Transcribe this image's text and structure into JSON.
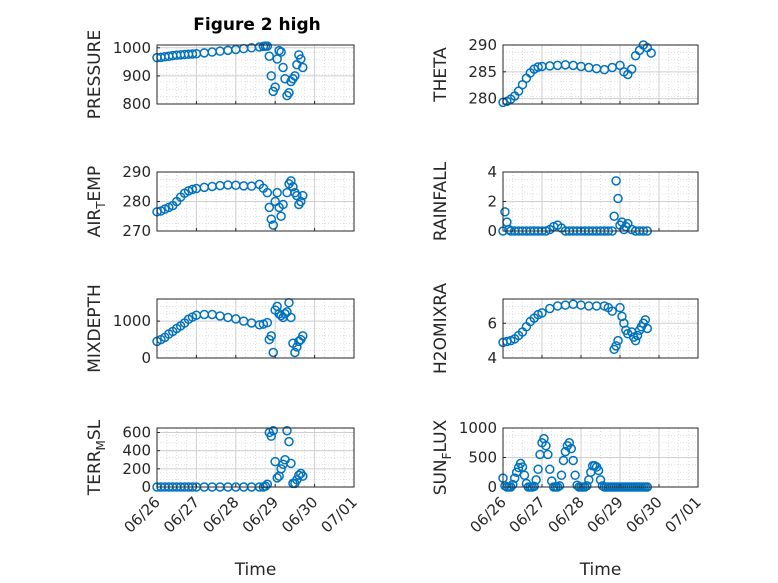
{
  "figure": {
    "title": "Figure 2 high"
  },
  "chart_data": [
    {
      "type": "scatter",
      "ylabel": "PRESSURE",
      "xlabel": "",
      "ylim": [
        800,
        1010
      ],
      "yticks": [
        "800",
        "900",
        "1000"
      ],
      "title": "Figure 2 high",
      "series": [
        {
          "color": "#0072BD",
          "marker": "circle",
          "x": [
            0,
            0.1,
            0.2,
            0.3,
            0.4,
            0.5,
            0.6,
            0.7,
            0.8,
            0.9,
            1.0,
            1.2,
            1.4,
            1.6,
            1.8,
            2.0,
            2.2,
            2.4,
            2.6,
            2.7,
            2.75,
            2.8,
            2.85,
            2.9,
            2.95,
            3.0,
            3.05,
            3.1,
            3.15,
            3.2,
            3.25,
            3.3,
            3.35,
            3.4,
            3.45,
            3.5,
            3.55,
            3.6,
            3.65,
            3.7
          ],
          "y": [
            965,
            966,
            968,
            970,
            972,
            974,
            975,
            976,
            977,
            978,
            979,
            982,
            985,
            988,
            991,
            994,
            997,
            1000,
            1003,
            1005,
            1006,
            1006,
            970,
            900,
            845,
            860,
            960,
            990,
            985,
            930,
            890,
            830,
            840,
            880,
            890,
            900,
            940,
            975,
            960,
            930
          ]
        }
      ]
    },
    {
      "type": "scatter",
      "ylabel": "THETA",
      "xlabel": "",
      "ylim": [
        279,
        290
      ],
      "yticks": [
        "280",
        "285",
        "290"
      ],
      "series": [
        {
          "color": "#0072BD",
          "marker": "circle",
          "x": [
            0,
            0.1,
            0.2,
            0.3,
            0.4,
            0.5,
            0.6,
            0.7,
            0.8,
            0.9,
            1.0,
            1.2,
            1.4,
            1.6,
            1.8,
            2.0,
            2.2,
            2.4,
            2.6,
            2.8,
            3.0,
            3.1,
            3.2,
            3.3,
            3.4,
            3.5,
            3.6,
            3.7,
            3.8
          ],
          "y": [
            279.3,
            279.5,
            279.9,
            280.5,
            281.4,
            282.6,
            283.8,
            284.8,
            285.5,
            285.9,
            286.0,
            286.1,
            286.2,
            286.3,
            286.2,
            286.0,
            285.8,
            285.6,
            285.4,
            285.8,
            286.2,
            285,
            284.5,
            285.5,
            288,
            289,
            290,
            289.5,
            288.5
          ]
        }
      ]
    },
    {
      "type": "scatter",
      "ylabel": "AIR_TEMP",
      "xlabel": "",
      "ylim": [
        270,
        290
      ],
      "yticks": [
        "270",
        "280",
        "290"
      ],
      "series": [
        {
          "color": "#0072BD",
          "marker": "circle",
          "x": [
            0,
            0.1,
            0.2,
            0.3,
            0.4,
            0.5,
            0.6,
            0.7,
            0.8,
            0.9,
            1.0,
            1.2,
            1.4,
            1.6,
            1.8,
            2.0,
            2.2,
            2.4,
            2.6,
            2.7,
            2.8,
            2.85,
            2.9,
            2.95,
            3.0,
            3.05,
            3.1,
            3.15,
            3.2,
            3.3,
            3.35,
            3.4,
            3.45,
            3.5,
            3.55,
            3.6,
            3.65,
            3.7
          ],
          "y": [
            276.5,
            276.8,
            277.4,
            278.0,
            278.6,
            280.0,
            281.5,
            282.8,
            283.6,
            284.1,
            284.4,
            284.8,
            285.1,
            285.4,
            285.6,
            285.5,
            285.3,
            285.2,
            285.8,
            284.5,
            283,
            278,
            274,
            272,
            280,
            283,
            278,
            275,
            279,
            283,
            286,
            287,
            285,
            283,
            282,
            279,
            280,
            282
          ]
        }
      ]
    },
    {
      "type": "scatter",
      "ylabel": "RAINFALL",
      "xlabel": "",
      "ylim": [
        0,
        4
      ],
      "yticks": [
        "0",
        "2",
        "4"
      ],
      "series": [
        {
          "color": "#0072BD",
          "marker": "circle",
          "x": [
            0,
            0.05,
            0.1,
            0.15,
            0.2,
            0.3,
            0.4,
            0.5,
            0.6,
            0.7,
            0.8,
            0.9,
            1.0,
            1.1,
            1.2,
            1.3,
            1.4,
            1.5,
            1.6,
            1.7,
            1.8,
            1.9,
            2.0,
            2.1,
            2.2,
            2.3,
            2.4,
            2.5,
            2.6,
            2.7,
            2.8,
            2.85,
            2.9,
            2.95,
            3.0,
            3.05,
            3.1,
            3.15,
            3.2,
            3.3,
            3.4,
            3.5,
            3.6,
            3.7
          ],
          "y": [
            0,
            1.3,
            0.6,
            0.1,
            0,
            0,
            0,
            0,
            0,
            0,
            0,
            0,
            0,
            0,
            0.1,
            0.3,
            0.4,
            0.2,
            0,
            0,
            0,
            0,
            0,
            0,
            0,
            0,
            0,
            0,
            0,
            0,
            0,
            1.0,
            3.4,
            2.2,
            0.4,
            0.6,
            0.1,
            0.3,
            0.5,
            0.1,
            0,
            0,
            0,
            0
          ]
        }
      ]
    },
    {
      "type": "scatter",
      "ylabel": "MIXDEPTH",
      "xlabel": "",
      "ylim": [
        0,
        1600
      ],
      "yticks": [
        "0",
        "1000"
      ],
      "series": [
        {
          "color": "#0072BD",
          "marker": "circle",
          "x": [
            0,
            0.1,
            0.2,
            0.3,
            0.4,
            0.5,
            0.6,
            0.7,
            0.8,
            0.9,
            1.0,
            1.2,
            1.4,
            1.6,
            1.8,
            2.0,
            2.2,
            2.4,
            2.6,
            2.7,
            2.8,
            2.85,
            2.9,
            2.95,
            3.0,
            3.05,
            3.1,
            3.15,
            3.2,
            3.25,
            3.3,
            3.35,
            3.4,
            3.45,
            3.5,
            3.55,
            3.6,
            3.65,
            3.7
          ],
          "y": [
            450,
            500,
            560,
            650,
            720,
            800,
            870,
            950,
            1050,
            1110,
            1160,
            1180,
            1180,
            1140,
            1100,
            1060,
            1000,
            950,
            900,
            920,
            960,
            500,
            600,
            150,
            1300,
            1400,
            1200,
            1150,
            1100,
            1200,
            1250,
            1500,
            1100,
            400,
            150,
            300,
            450,
            500,
            600
          ]
        }
      ]
    },
    {
      "type": "scatter",
      "ylabel": "H2OMIXRA",
      "xlabel": "",
      "ylim": [
        4,
        7.4
      ],
      "yticks": [
        "4",
        "6"
      ],
      "series": [
        {
          "color": "#0072BD",
          "marker": "circle",
          "x": [
            0,
            0.1,
            0.2,
            0.3,
            0.4,
            0.5,
            0.6,
            0.7,
            0.8,
            0.9,
            1.0,
            1.2,
            1.4,
            1.6,
            1.8,
            2.0,
            2.2,
            2.4,
            2.6,
            2.7,
            2.8,
            2.85,
            2.9,
            2.95,
            3.0,
            3.05,
            3.1,
            3.15,
            3.2,
            3.3,
            3.35,
            3.4,
            3.45,
            3.5,
            3.55,
            3.6,
            3.65,
            3.7
          ],
          "y": [
            4.9,
            4.95,
            5.0,
            5.1,
            5.3,
            5.5,
            5.8,
            6.1,
            6.3,
            6.5,
            6.6,
            6.85,
            7.0,
            7.05,
            7.1,
            7.05,
            7.0,
            7.0,
            7.0,
            6.9,
            6.7,
            4.5,
            4.7,
            5.0,
            6.9,
            6.4,
            6.0,
            5.6,
            5.4,
            5.5,
            5.2,
            5.0,
            5.3,
            5.6,
            5.8,
            6.0,
            6.2,
            5.7
          ]
        }
      ]
    },
    {
      "type": "scatter",
      "ylabel": "TERR_MSL",
      "xlabel": "Time",
      "ylim": [
        0,
        650
      ],
      "yticks": [
        "0",
        "200",
        "400",
        "600"
      ],
      "xticks": [
        "06/26",
        "06/27",
        "06/28",
        "06/29",
        "06/30",
        "07/01"
      ],
      "series": [
        {
          "color": "#0072BD",
          "marker": "circle",
          "x": [
            0,
            0.1,
            0.2,
            0.3,
            0.4,
            0.5,
            0.6,
            0.7,
            0.8,
            0.9,
            1.0,
            1.2,
            1.4,
            1.6,
            1.8,
            2.0,
            2.2,
            2.4,
            2.6,
            2.7,
            2.75,
            2.8,
            2.85,
            2.9,
            2.95,
            3.0,
            3.05,
            3.1,
            3.15,
            3.2,
            3.25,
            3.3,
            3.35,
            3.4,
            3.45,
            3.5,
            3.55,
            3.6,
            3.65,
            3.7
          ],
          "y": [
            0,
            0,
            0,
            0,
            0,
            0,
            0,
            0,
            0,
            0,
            0,
            0,
            0,
            0,
            0,
            0,
            0,
            0,
            0,
            0,
            10,
            30,
            600,
            560,
            620,
            280,
            100,
            120,
            200,
            250,
            300,
            620,
            500,
            260,
            40,
            40,
            80,
            130,
            150,
            120
          ]
        }
      ]
    },
    {
      "type": "scatter",
      "ylabel": "SUN_FLUX",
      "xlabel": "Time",
      "ylim": [
        0,
        1000
      ],
      "yticks": [
        "0",
        "500",
        "1000"
      ],
      "xticks": [
        "06/26",
        "06/27",
        "06/28",
        "06/29",
        "06/30",
        "07/01"
      ],
      "series": [
        {
          "color": "#0072BD",
          "marker": "circle",
          "x": [
            0,
            0.05,
            0.1,
            0.15,
            0.2,
            0.25,
            0.3,
            0.35,
            0.4,
            0.45,
            0.5,
            0.55,
            0.6,
            0.65,
            0.7,
            0.75,
            0.8,
            0.85,
            0.9,
            0.95,
            1.0,
            1.05,
            1.1,
            1.15,
            1.2,
            1.25,
            1.3,
            1.35,
            1.4,
            1.45,
            1.5,
            1.55,
            1.6,
            1.65,
            1.7,
            1.75,
            1.8,
            1.85,
            1.9,
            1.95,
            2.0,
            2.05,
            2.1,
            2.15,
            2.2,
            2.25,
            2.3,
            2.35,
            2.4,
            2.45,
            2.5,
            2.55,
            2.6,
            2.65,
            2.7,
            2.75,
            2.8,
            2.85,
            2.9,
            2.95,
            3.0,
            3.05,
            3.1,
            3.15,
            3.2,
            3.25,
            3.3,
            3.35,
            3.4,
            3.45,
            3.5,
            3.55,
            3.6,
            3.65,
            3.7
          ],
          "y": [
            150,
            20,
            0,
            0,
            0,
            40,
            150,
            250,
            330,
            400,
            340,
            200,
            60,
            0,
            0,
            0,
            10,
            120,
            300,
            550,
            750,
            820,
            700,
            550,
            300,
            100,
            0,
            0,
            0,
            20,
            200,
            450,
            600,
            700,
            750,
            650,
            450,
            200,
            30,
            0,
            0,
            0,
            0,
            20,
            120,
            250,
            360,
            360,
            340,
            280,
            120,
            20,
            0,
            0,
            0,
            0,
            0,
            0,
            0,
            0,
            0,
            0,
            0,
            0,
            0,
            0,
            0,
            0,
            0,
            0,
            0,
            0,
            0,
            0,
            0
          ]
        }
      ]
    }
  ]
}
